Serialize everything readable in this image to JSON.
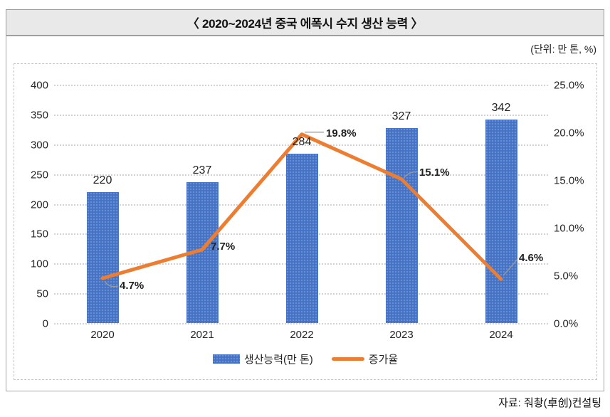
{
  "title": "〈 2020~2024년 중국 에폭시 수지 생산 능력 〉",
  "unit_label": "(단위: 만 톤, %)",
  "source": "자료: 줘촹(卓创)컨설팅",
  "chart_data": {
    "type": "bar",
    "subtype": "combo bar + line, dual axis",
    "title": "2020~2024년 중국 에폭시 수지 생산 능력",
    "categories": [
      "2020",
      "2021",
      "2022",
      "2023",
      "2024"
    ],
    "series": [
      {
        "name": "생산능력(만 톤)",
        "type": "bar",
        "axis": "left",
        "values": [
          220,
          237,
          284,
          327,
          342
        ],
        "labels": [
          "220",
          "237",
          "284",
          "327",
          "342"
        ],
        "color": "#4472C4"
      },
      {
        "name": "증가율",
        "type": "line",
        "axis": "right",
        "values": [
          4.7,
          7.7,
          19.8,
          15.1,
          4.6
        ],
        "labels": [
          "4.7%",
          "7.7%",
          "19.8%",
          "15.1%",
          "4.6%"
        ],
        "color": "#ED7D31"
      }
    ],
    "left_axis": {
      "min": 0,
      "max": 400,
      "step": 50,
      "ticks": [
        "400",
        "350",
        "300",
        "250",
        "200",
        "150",
        "100",
        "50",
        "0"
      ]
    },
    "right_axis": {
      "min": 0,
      "max": 25,
      "step": 5,
      "ticks": [
        "25.0%",
        "20.0%",
        "15.0%",
        "10.0%",
        "5.0%",
        "0.0%"
      ]
    },
    "grid": "horizontal dotted",
    "legend_position": "bottom center"
  }
}
